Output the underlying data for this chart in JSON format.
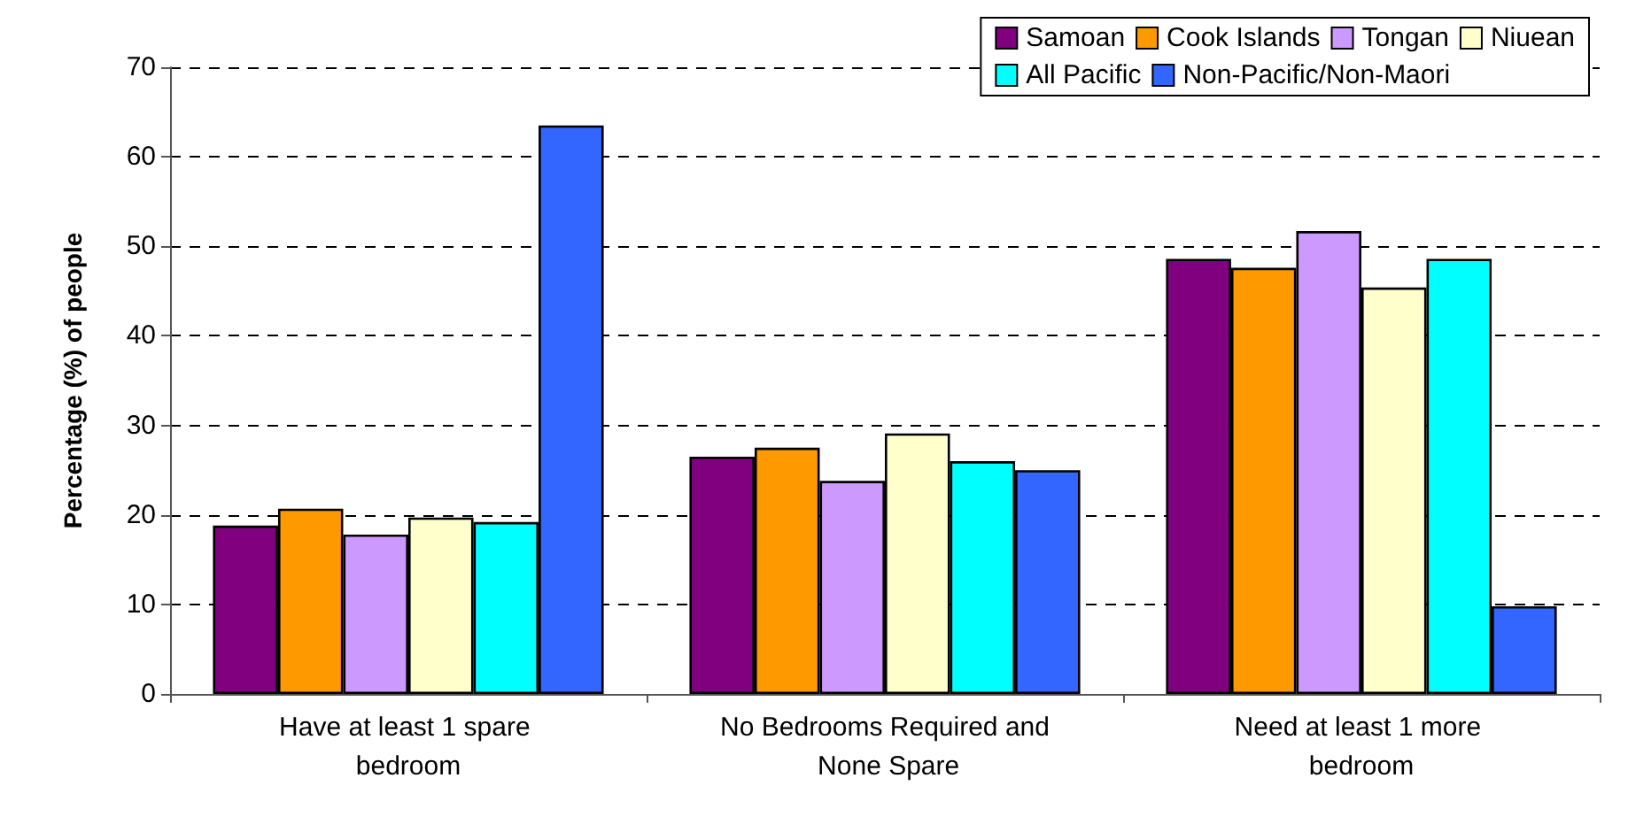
{
  "chart_data": {
    "type": "bar",
    "ylabel": "Percentage (%) of people",
    "categories": [
      "Have at least 1 spare bedroom",
      "No Bedrooms Required and None Spare",
      "Need at least 1 more bedroom"
    ],
    "series": [
      {
        "name": "Samoan",
        "color": "#800080",
        "values": [
          18.8,
          26.5,
          48.6
        ]
      },
      {
        "name": "Cook Islands",
        "color": "#ff9900",
        "values": [
          20.7,
          27.5,
          47.6
        ]
      },
      {
        "name": "Tongan",
        "color": "#cc99ff",
        "values": [
          17.8,
          23.8,
          51.7
        ]
      },
      {
        "name": "Niuean",
        "color": "#ffffcc",
        "values": [
          19.7,
          29.1,
          45.4
        ]
      },
      {
        "name": "All Pacific",
        "color": "#00ffff",
        "values": [
          19.2,
          26.0,
          48.6
        ]
      },
      {
        "name": "Non-Pacific/Non-Maori",
        "color": "#3366ff",
        "values": [
          63.5,
          25.0,
          9.8
        ]
      }
    ],
    "ylim": [
      0,
      70
    ],
    "yticks": [
      0,
      10,
      20,
      30,
      40,
      50,
      60,
      70
    ],
    "grid": "y",
    "legend": "top right"
  }
}
